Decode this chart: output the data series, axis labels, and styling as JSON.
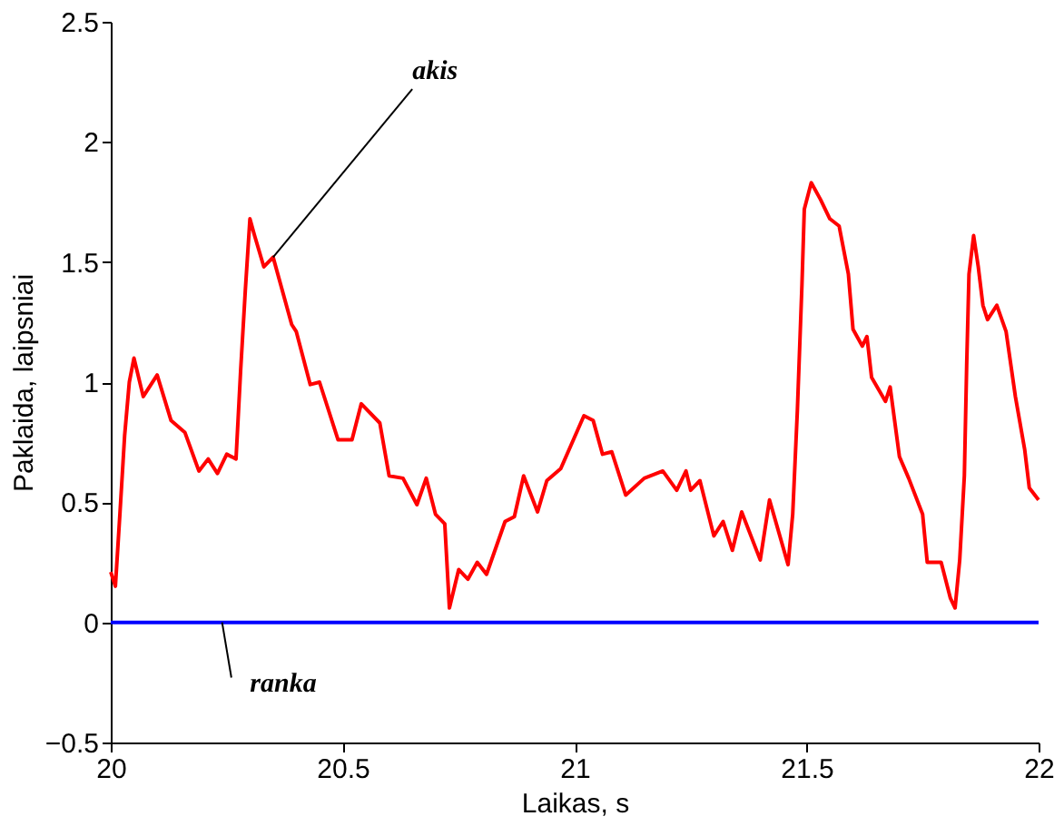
{
  "chart_data": {
    "type": "line",
    "xlabel": "Laikas, s",
    "ylabel": "Paklaida, laipsniai",
    "xlim": [
      20,
      22
    ],
    "xticks": [
      20,
      20.5,
      21,
      21.5,
      22
    ],
    "ylim": [
      -0.5,
      2.5
    ],
    "yticks": [
      -0.5,
      0,
      0.5,
      1,
      1.5,
      2,
      2.5
    ],
    "grid": false,
    "series": [
      {
        "color": "#ff0000",
        "x": [
          20.0,
          20.01,
          20.02,
          20.03,
          20.04,
          20.05,
          20.07,
          20.1,
          20.13,
          20.16,
          20.19,
          20.21,
          20.23,
          20.25,
          20.27,
          20.28,
          20.29,
          20.3,
          20.31,
          20.33,
          20.35,
          20.39,
          20.4,
          20.43,
          20.45,
          20.49,
          20.52,
          20.54,
          20.58,
          20.6,
          20.63,
          20.66,
          20.68,
          20.7,
          20.72,
          20.73,
          20.75,
          20.77,
          20.79,
          20.81,
          20.85,
          20.87,
          20.89,
          20.92,
          20.94,
          20.97,
          21.02,
          21.04,
          21.06,
          21.08,
          21.11,
          21.15,
          21.19,
          21.22,
          21.24,
          21.25,
          21.27,
          21.3,
          21.32,
          21.34,
          21.36,
          21.4,
          21.42,
          21.46,
          21.47,
          21.48,
          21.49,
          21.495,
          21.51,
          21.53,
          21.55,
          21.57,
          21.59,
          21.6,
          21.62,
          21.63,
          21.64,
          21.67,
          21.68,
          21.7,
          21.72,
          21.75,
          21.76,
          21.79,
          21.81,
          21.82,
          21.83,
          21.84,
          21.845,
          21.85,
          21.86,
          21.87,
          21.88,
          21.89,
          21.91,
          21.93,
          21.95,
          21.97,
          21.98,
          22.0
        ],
        "values": [
          0.21,
          0.15,
          0.46,
          0.78,
          1.0,
          1.1,
          0.94,
          1.03,
          0.84,
          0.79,
          0.63,
          0.68,
          0.62,
          0.7,
          0.68,
          1.05,
          1.38,
          1.68,
          1.61,
          1.48,
          1.52,
          1.24,
          1.21,
          0.99,
          1.0,
          0.76,
          0.76,
          0.91,
          0.83,
          0.61,
          0.6,
          0.49,
          0.6,
          0.45,
          0.41,
          0.06,
          0.22,
          0.18,
          0.25,
          0.2,
          0.42,
          0.44,
          0.61,
          0.46,
          0.59,
          0.64,
          0.86,
          0.84,
          0.7,
          0.71,
          0.53,
          0.6,
          0.63,
          0.55,
          0.63,
          0.55,
          0.59,
          0.36,
          0.42,
          0.3,
          0.46,
          0.26,
          0.51,
          0.24,
          0.45,
          0.88,
          1.41,
          1.72,
          1.83,
          1.76,
          1.68,
          1.65,
          1.45,
          1.22,
          1.15,
          1.19,
          1.02,
          0.92,
          0.98,
          0.69,
          0.6,
          0.45,
          0.25,
          0.25,
          0.1,
          0.06,
          0.26,
          0.61,
          1.07,
          1.45,
          1.61,
          1.48,
          1.32,
          1.26,
          1.32,
          1.21,
          0.94,
          0.72,
          0.56,
          0.51
        ]
      },
      {
        "color": "#0000ff",
        "x": [
          20,
          22
        ],
        "values": [
          0,
          0
        ]
      }
    ],
    "annotations": [
      {
        "text": "akis",
        "x": 20.35,
        "y": 1.52
      },
      {
        "text": "ranka",
        "x": 20.24,
        "y": 0
      }
    ]
  }
}
